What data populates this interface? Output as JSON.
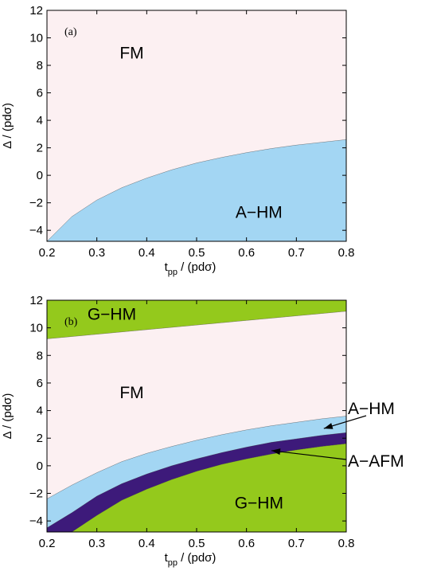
{
  "chart_data": [
    {
      "type": "area",
      "panel_label": "(a)",
      "xlabel": {
        "main": "t",
        "sub": "pp",
        "rest": " / (pdσ)"
      },
      "ylabel": "Δ / (pdσ)",
      "xlim": [
        0.2,
        0.8
      ],
      "ylim": [
        -4.8,
        12
      ],
      "x_ticks": [
        "0.2",
        "0.3",
        "0.4",
        "0.5",
        "0.6",
        "0.7",
        "0.8"
      ],
      "y_ticks": [
        "−4",
        "−2",
        "0",
        "2",
        "4",
        "6",
        "8",
        "10",
        "12"
      ],
      "boundaries": [
        {
          "name": "A-HM/FM",
          "x": [
            0.2,
            0.25,
            0.3,
            0.35,
            0.4,
            0.45,
            0.5,
            0.55,
            0.6,
            0.65,
            0.7,
            0.75,
            0.8
          ],
          "y": [
            -4.8,
            -3.0,
            -1.8,
            -0.9,
            -0.2,
            0.4,
            0.9,
            1.3,
            1.65,
            1.95,
            2.2,
            2.4,
            2.6
          ]
        }
      ],
      "regions": [
        {
          "label": "FM",
          "color": "#fcf0f2",
          "label_at": [
            0.37,
            8.5
          ]
        },
        {
          "label": "A−HM",
          "color": "#a3d6f3",
          "label_at": [
            0.625,
            -3.1
          ]
        }
      ]
    },
    {
      "type": "area",
      "panel_label": "(b)",
      "xlabel": {
        "main": "t",
        "sub": "pp",
        "rest": " / (pdσ)"
      },
      "ylabel": "Δ / (pdσ)",
      "xlim": [
        0.2,
        0.8
      ],
      "ylim": [
        -4.8,
        12
      ],
      "x_ticks": [
        "0.2",
        "0.3",
        "0.4",
        "0.5",
        "0.6",
        "0.7",
        "0.8"
      ],
      "y_ticks": [
        "−4",
        "−2",
        "0",
        "2",
        "4",
        "6",
        "8",
        "10",
        "12"
      ],
      "boundaries": [
        {
          "name": "G-HM(top)/FM",
          "x": [
            0.2,
            0.8
          ],
          "y": [
            9.2,
            11.2
          ]
        },
        {
          "name": "FM/A-HM",
          "x": [
            0.2,
            0.25,
            0.3,
            0.35,
            0.4,
            0.45,
            0.5,
            0.55,
            0.6,
            0.65,
            0.7,
            0.75,
            0.8
          ],
          "y": [
            -2.4,
            -1.4,
            -0.5,
            0.3,
            0.9,
            1.4,
            1.85,
            2.25,
            2.6,
            2.9,
            3.15,
            3.4,
            3.6
          ]
        },
        {
          "name": "A-HM/A-AFM",
          "x": [
            0.2,
            0.25,
            0.3,
            0.35,
            0.4,
            0.45,
            0.5,
            0.55,
            0.6,
            0.65,
            0.7,
            0.75,
            0.8
          ],
          "y": [
            -4.5,
            -3.4,
            -2.2,
            -1.3,
            -0.6,
            0.0,
            0.5,
            0.95,
            1.35,
            1.7,
            1.95,
            2.2,
            2.4
          ]
        },
        {
          "name": "A-AFM/G-HM",
          "x": [
            0.2,
            0.25,
            0.3,
            0.35,
            0.4,
            0.45,
            0.5,
            0.55,
            0.6,
            0.65,
            0.7,
            0.75,
            0.8
          ],
          "y": [
            -4.8,
            -4.8,
            -3.6,
            -2.5,
            -1.7,
            -1.0,
            -0.4,
            0.1,
            0.5,
            0.85,
            1.15,
            1.4,
            1.6
          ]
        }
      ],
      "regions": [
        {
          "label": "G−HM",
          "color": "#94c91c",
          "label_at": [
            0.33,
            10.6
          ]
        },
        {
          "label": "FM",
          "color": "#fcf0f2",
          "label_at": [
            0.37,
            4.9
          ]
        },
        {
          "label": "A−HM",
          "color": "#a3d6f3"
        },
        {
          "label": "A−AFM",
          "color": "#3d1a7a"
        },
        {
          "label": "G−HM",
          "color": "#94c91c",
          "label_at": [
            0.625,
            -3.1
          ]
        }
      ],
      "callouts": [
        {
          "label": "A−HM",
          "arrow_to": [
            0.755,
            2.7
          ]
        },
        {
          "label": "A−AFM",
          "arrow_to": [
            0.65,
            1.1
          ]
        }
      ]
    }
  ]
}
